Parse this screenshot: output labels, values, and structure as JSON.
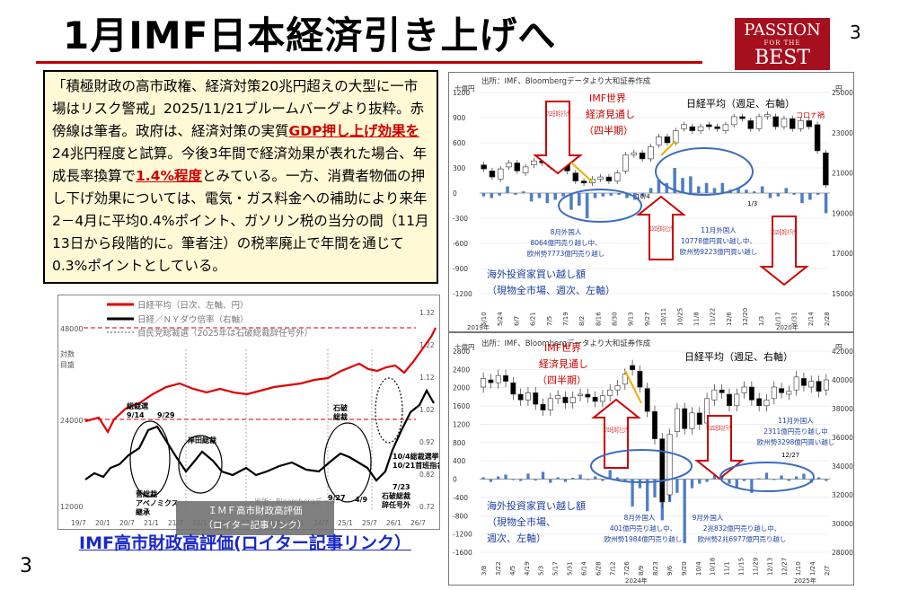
{
  "slide": {
    "title": "1月IMF日本経済引き上げへ",
    "page_number": "3",
    "logo": {
      "line1": "PASSION",
      "line2": "FOR THE",
      "line3": "BEST"
    },
    "quote": {
      "p1": "「積極財政の高市政権、経済対策20兆円超えの大型に一市場はリスク警戒」2025/11/21ブルームバーグより抜粋。赤傍線は筆者。政府は、経済対策の実質",
      "h1": "GDP押し上げ効果を",
      "p2": "24兆円程度と試算。今後3年間で経済効果が表れた場合、年成長率換算で",
      "h2": "1.4%程度",
      "p3": "とみている。一方、消費者物価の押し下げ効果については、電気・ガス料金への補助により来年2－4月に平均0.4%ポイント、ガソリン税の当分の間（11月13日から段階的に。筆者注）の税率廃止で年間を通じて0.3%ポイントとしている。"
    },
    "link_text": "IMF高市財政高評価(ロイター記事リンク）",
    "tooltip": {
      "line1": "ＩＭＦ高市財政高評価",
      "line2": "（ロイター記事リンク）"
    }
  },
  "left_chart": {
    "legend": [
      "日経平均（日次、左軸、円）",
      "日経／ＮＹダウ倍率（右軸）",
      "自民党総裁選（2025年は石破総裁辞任号外）"
    ],
    "left_axis_title": [
      "対数",
      "目盛"
    ],
    "left_ticks": [
      "48000",
      "24000",
      "12000"
    ],
    "right_ticks": [
      "1.32",
      "1.22",
      "1.12",
      "1.02",
      "0.92",
      "0.82",
      "0.72"
    ],
    "x_ticks": [
      "19/7",
      "20/1",
      "20/7",
      "21/1",
      "21/7",
      "22/1",
      "22/7",
      "23/1",
      "23/7",
      "24/1",
      "24/7",
      "25/1",
      "25/7",
      "26/1",
      "26/7"
    ],
    "annotations": {
      "a1": "総裁選",
      "a1d": "9/14",
      "a2": "9/29",
      "a3": "岸田総裁",
      "a4": "菅総裁",
      "a4b": "アベノミクス",
      "a4c": "継承",
      "a5": "石破",
      "a5b": "総裁",
      "a6": "9/27",
      "a7": "4/9",
      "a8": "10/4総裁選挙",
      "a8b": "10/21首班指名",
      "a9": "7/23",
      "a9b": "石破総裁",
      "a9c": "辞任号外",
      "src": "出所：Bloombergデータ"
    },
    "colors": {
      "nikkei": "#e00000",
      "ratio": "#000000"
    }
  },
  "right_top_chart": {
    "source": "出所：IMF、Bloombergデータより大和証券作成",
    "unit_left": "十億円",
    "unit_right": "円",
    "imf_title": [
      "IMF世界",
      "経済見通し",
      "（四半期）"
    ],
    "nikkei_title": "日経平均（週足、右軸）",
    "corona": "コロナ禍",
    "left_ticks": [
      "1200",
      "900",
      "600",
      "300",
      "0",
      "-300",
      "-600",
      "-900",
      "-1200"
    ],
    "right_ticks": [
      "25000",
      "23000",
      "21000",
      "19000",
      "17000",
      "15000"
    ],
    "x_ticks": [
      "5/10",
      "5/24",
      "6/7",
      "6/21",
      "7/5",
      "7/19",
      "8/2",
      "8/16",
      "8/30",
      "9/13",
      "9/27",
      "10/11",
      "10/25",
      "11/8",
      "11/22",
      "12/6",
      "12/20",
      "1/3",
      "1/17",
      "1/31",
      "2/14",
      "2/28"
    ],
    "years": [
      "2019年",
      "2020年"
    ],
    "date_marks": [
      "10/4",
      "1/3"
    ],
    "arrow1": "7/23日本引き下げ",
    "arrow2": "10/15日本引き上げ",
    "arrow3": "1/20日本引き下げ",
    "note1": [
      "8月外国人",
      "8064億円売り越し中、",
      "欧州勢7773億円売り越し"
    ],
    "note2": [
      "11月外国人",
      "10778億円買い越し中、",
      "欧州勢9223億円買い越し"
    ],
    "bottom_label": [
      "海外投資家買い越し額",
      "（現物全市場、週次、左軸）"
    ]
  },
  "right_bottom_chart": {
    "source": "出所：IMF、Bloombergデータより大和証券作成",
    "unit_left": "十億円",
    "unit_right": "円",
    "imf_title": [
      "IMF世界",
      "経済見通し",
      "（四半期）"
    ],
    "nikkei_title": "日経平均（週足、右軸）",
    "left_ticks": [
      "2800",
      "2400",
      "2000",
      "1600",
      "1200",
      "800",
      "400",
      "0",
      "-400",
      "-800",
      "-1200",
      "-1600"
    ],
    "right_ticks": [
      "42000",
      "40000",
      "38000",
      "36000",
      "34000",
      "32000",
      "30000",
      "28000"
    ],
    "x_ticks": [
      "3/8",
      "3/22",
      "4/5",
      "4/19",
      "5/3",
      "5/17",
      "5/31",
      "6/14",
      "6/28",
      "7/12",
      "7/26",
      "8/9",
      "8/23",
      "9/6",
      "9/20",
      "10/4",
      "10/18",
      "11/1",
      "11/15",
      "11/29",
      "12/13",
      "12/27",
      "1/10",
      "1/24",
      "2/7"
    ],
    "years": [
      "2024年",
      "2025年"
    ],
    "date_marks": [
      "12/27"
    ],
    "arrow1": "7/16日本引き上げ",
    "arrow2": "10/22日本引き下げ",
    "note1": [
      "8月外国人",
      "401億円売り越し中、",
      "欧州勢1984億円売り越し"
    ],
    "note2": [
      "9月外国人",
      "2兆832億円売り越し中、",
      "欧州勢2兆6977億円売り越し"
    ],
    "note3": [
      "11月外国人",
      "2311億円売り越し中",
      "欧州勢3298億円買い越し"
    ],
    "bottom_label": [
      "海外投資家買い越し額",
      "（現物全市場、",
      "週次、左軸）"
    ]
  }
}
